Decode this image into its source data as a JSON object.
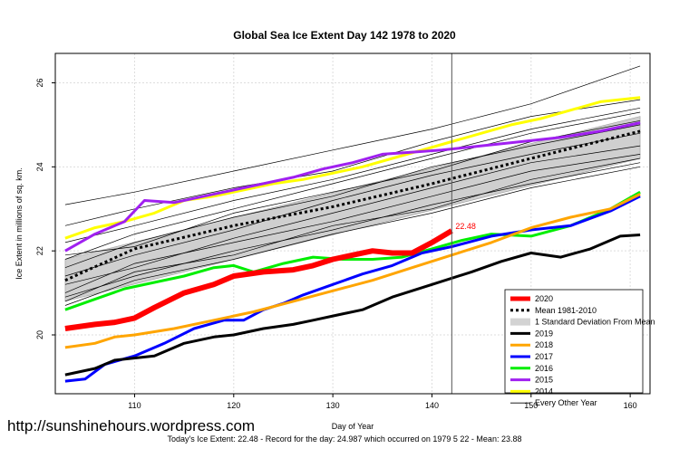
{
  "title": "Global Sea Ice Extent Day 142 1978 to 2020",
  "watermark": "http://sunshinehours.wordpress.com",
  "footer": "Today's Ice Extent: 22.48  - Record for the day: 24.987 which occurred on 1979 5 22  - Mean: 23.88",
  "chart_data": {
    "type": "line",
    "title": "Global Sea Ice Extent Day 142 1978 to 2020",
    "xlabel": "Day of Year",
    "ylabel": "Ice Extent in millions of sq. km.",
    "xlim": [
      102,
      162
    ],
    "ylim": [
      18.6,
      26.7
    ],
    "xticks": [
      110,
      120,
      130,
      140,
      150,
      160
    ],
    "yticks": [
      20,
      22,
      24,
      26
    ],
    "grid": true,
    "current_day": 142,
    "annotation": {
      "text": "22.48",
      "x": 142,
      "y": 22.48,
      "color": "#ff0000"
    },
    "legend_position": "bottom-right",
    "legend": [
      {
        "label": "2020",
        "color": "#ff0000",
        "style": "thick"
      },
      {
        "label": "Mean 1981-2010",
        "color": "#000000",
        "style": "dotted"
      },
      {
        "label": "1 Standard Deviation From Mean",
        "color": "#d3d3d3",
        "style": "band"
      },
      {
        "label": "2019",
        "color": "#000000",
        "style": "solid"
      },
      {
        "label": "2018",
        "color": "#ffa500",
        "style": "solid"
      },
      {
        "label": "2017",
        "color": "#0000ff",
        "style": "solid"
      },
      {
        "label": "2016",
        "color": "#00ee00",
        "style": "solid"
      },
      {
        "label": "2015",
        "color": "#a020f0",
        "style": "solid"
      },
      {
        "label": "2014",
        "color": "#ffff00",
        "style": "solid"
      },
      {
        "label": "Every Other Year",
        "color": "#000000",
        "style": "thin"
      }
    ],
    "std_band": {
      "x": [
        103,
        161
      ],
      "lower": [
        20.8,
        24.2
      ],
      "upper": [
        21.8,
        25.2
      ]
    },
    "series": [
      {
        "name": "Mean 1981-2010",
        "color": "#000000",
        "x": [
          103,
          110,
          120,
          130,
          140,
          150,
          161
        ],
        "y": [
          21.3,
          22.05,
          22.6,
          23.05,
          23.6,
          24.2,
          24.85
        ]
      },
      {
        "name": "2020",
        "color": "#ff0000",
        "x": [
          103,
          106,
          108,
          110,
          112,
          115,
          118,
          120,
          123,
          126,
          128,
          130,
          132,
          134,
          136,
          138,
          140,
          142
        ],
        "y": [
          20.15,
          20.25,
          20.3,
          20.4,
          20.65,
          21.0,
          21.2,
          21.4,
          21.5,
          21.55,
          21.65,
          21.8,
          21.9,
          22.0,
          21.95,
          21.95,
          22.2,
          22.48
        ]
      },
      {
        "name": "2019",
        "color": "#000000",
        "x": [
          103,
          106,
          108,
          112,
          115,
          118,
          120,
          123,
          126,
          128,
          130,
          133,
          136,
          140,
          144,
          147,
          150,
          153,
          156,
          159,
          161
        ],
        "y": [
          19.05,
          19.2,
          19.4,
          19.5,
          19.8,
          19.95,
          20.0,
          20.15,
          20.25,
          20.35,
          20.45,
          20.6,
          20.9,
          21.2,
          21.5,
          21.75,
          21.95,
          21.85,
          22.05,
          22.35,
          22.38
        ]
      },
      {
        "name": "2018",
        "color": "#ffa500",
        "x": [
          103,
          106,
          108,
          110,
          114,
          118,
          122,
          126,
          130,
          134,
          138,
          142,
          146,
          150,
          154,
          158,
          161
        ],
        "y": [
          19.7,
          19.8,
          19.95,
          20.0,
          20.15,
          20.35,
          20.55,
          20.8,
          21.05,
          21.3,
          21.6,
          21.9,
          22.2,
          22.55,
          22.8,
          23.0,
          23.35
        ]
      },
      {
        "name": "2017",
        "color": "#0000ff",
        "x": [
          103,
          105,
          107,
          110,
          113,
          116,
          119,
          121,
          123,
          125,
          127,
          130,
          133,
          136,
          139,
          142,
          146,
          150,
          154,
          158,
          161
        ],
        "y": [
          18.9,
          18.95,
          19.3,
          19.5,
          19.8,
          20.15,
          20.35,
          20.35,
          20.6,
          20.75,
          20.95,
          21.2,
          21.45,
          21.65,
          21.95,
          22.1,
          22.35,
          22.5,
          22.6,
          22.95,
          23.3
        ]
      },
      {
        "name": "2016",
        "color": "#00ee00",
        "x": [
          103,
          106,
          109,
          112,
          115,
          118,
          120,
          122,
          125,
          128,
          131,
          134,
          137,
          140,
          143,
          146,
          150,
          154,
          158,
          161
        ],
        "y": [
          20.6,
          20.85,
          21.1,
          21.25,
          21.4,
          21.6,
          21.65,
          21.5,
          21.7,
          21.85,
          21.8,
          21.8,
          21.85,
          22.05,
          22.25,
          22.4,
          22.35,
          22.6,
          23.0,
          23.4
        ]
      },
      {
        "name": "2015",
        "color": "#a020f0",
        "x": [
          103,
          106,
          109,
          111,
          114,
          117,
          120,
          123,
          126,
          129,
          132,
          135,
          138,
          141,
          145,
          149,
          153,
          157,
          161
        ],
        "y": [
          22.0,
          22.4,
          22.7,
          23.2,
          23.15,
          23.3,
          23.45,
          23.6,
          23.75,
          23.95,
          24.1,
          24.3,
          24.35,
          24.4,
          24.5,
          24.6,
          24.7,
          24.85,
          25.05
        ]
      },
      {
        "name": "2014",
        "color": "#ffff00",
        "x": [
          103,
          106,
          109,
          112,
          115,
          118,
          121,
          124,
          127,
          130,
          133,
          136,
          139,
          142,
          145,
          148,
          151,
          154,
          157,
          161
        ],
        "y": [
          22.3,
          22.55,
          22.7,
          22.9,
          23.2,
          23.3,
          23.45,
          23.6,
          23.7,
          23.85,
          24.0,
          24.2,
          24.4,
          24.6,
          24.8,
          25.0,
          25.15,
          25.35,
          25.55,
          25.65
        ]
      }
    ],
    "other_years": [
      {
        "x": [
          103,
          110,
          120,
          130,
          140,
          150,
          161
        ],
        "y": [
          21.2,
          21.6,
          22.3,
          22.9,
          23.5,
          24.1,
          24.5
        ]
      },
      {
        "x": [
          103,
          110,
          120,
          130,
          140,
          150,
          161
        ],
        "y": [
          21.6,
          22.2,
          22.8,
          23.3,
          24.0,
          24.5,
          25.0
        ]
      },
      {
        "x": [
          103,
          110,
          120,
          130,
          140,
          150,
          161
        ],
        "y": [
          20.9,
          21.4,
          22.0,
          22.5,
          23.1,
          23.6,
          24.1
        ]
      },
      {
        "x": [
          103,
          110,
          120,
          130,
          140,
          150,
          161
        ],
        "y": [
          21.8,
          22.4,
          23.0,
          23.6,
          24.2,
          24.8,
          25.3
        ]
      },
      {
        "x": [
          103,
          110,
          120,
          130,
          140,
          150,
          161
        ],
        "y": [
          23.1,
          23.4,
          23.9,
          24.4,
          24.9,
          25.5,
          26.4
        ]
      },
      {
        "x": [
          103,
          110,
          120,
          130,
          140,
          150,
          161
        ],
        "y": [
          22.6,
          23.0,
          23.5,
          23.9,
          24.6,
          25.2,
          25.6
        ]
      },
      {
        "x": [
          103,
          110,
          120,
          130,
          140,
          150,
          161
        ],
        "y": [
          21.4,
          21.9,
          22.5,
          23.2,
          23.8,
          24.3,
          24.8
        ]
      },
      {
        "x": [
          103,
          110,
          120,
          130,
          140,
          150,
          161
        ],
        "y": [
          20.7,
          21.3,
          21.8,
          22.4,
          22.9,
          23.5,
          24.0
        ]
      },
      {
        "x": [
          103,
          110,
          120,
          130,
          140,
          150,
          161
        ],
        "y": [
          22.2,
          22.6,
          23.2,
          23.7,
          24.3,
          24.9,
          25.4
        ]
      },
      {
        "x": [
          103,
          110,
          120,
          130,
          140,
          150,
          161
        ],
        "y": [
          21.0,
          21.7,
          22.2,
          22.7,
          23.3,
          23.9,
          24.3
        ]
      },
      {
        "x": [
          103,
          110,
          120,
          130,
          140,
          150,
          161
        ],
        "y": [
          21.9,
          22.1,
          22.9,
          23.4,
          23.9,
          24.6,
          25.1
        ]
      },
      {
        "x": [
          103,
          110,
          120,
          130,
          140,
          150,
          161
        ],
        "y": [
          20.8,
          21.5,
          21.9,
          22.6,
          23.0,
          23.7,
          24.2
        ]
      }
    ]
  }
}
